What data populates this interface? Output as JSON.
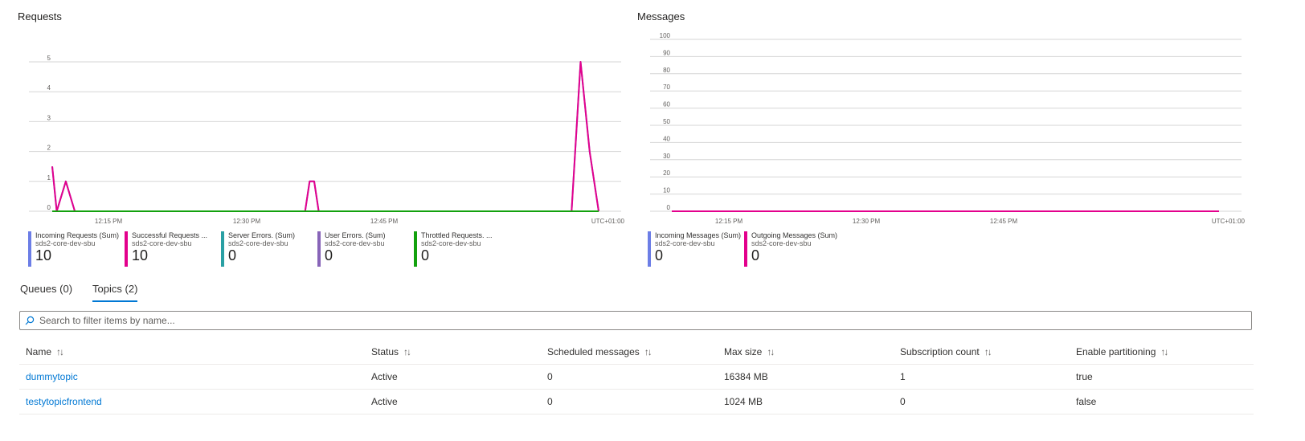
{
  "requests_chart": {
    "title": "Requests",
    "chart_data": {
      "type": "line",
      "y_ticks": [
        "0",
        "1",
        "2",
        "3",
        "4",
        "5"
      ],
      "ylim": [
        0,
        5
      ],
      "x_ticks": [
        "12:15 PM",
        "12:30 PM",
        "12:45 PM"
      ],
      "timezone": "UTC+01:00",
      "series": [
        {
          "name": "Incoming Requests (Sum)",
          "color": "#6c7ee6",
          "points": [
            [
              0,
              1.5
            ],
            [
              1,
              0
            ],
            [
              3,
              1
            ],
            [
              5,
              0
            ],
            [
              56,
              0
            ],
            [
              57,
              1
            ],
            [
              58,
              1
            ],
            [
              59,
              0
            ],
            [
              115,
              0
            ],
            [
              117,
              5
            ],
            [
              119,
              2
            ],
            [
              121,
              0
            ]
          ]
        },
        {
          "name": "Successful Requests ...",
          "color": "#e3008c",
          "points": [
            [
              0,
              1.5
            ],
            [
              1,
              0
            ],
            [
              3,
              1
            ],
            [
              5,
              0
            ],
            [
              56,
              0
            ],
            [
              57,
              1
            ],
            [
              58,
              1
            ],
            [
              59,
              0
            ],
            [
              115,
              0
            ],
            [
              117,
              5
            ],
            [
              119,
              2
            ],
            [
              121,
              0
            ]
          ]
        },
        {
          "name": "Server Errors. (Sum)",
          "color": "#2aa0a4",
          "points": [
            [
              0,
              0
            ],
            [
              121,
              0
            ]
          ]
        },
        {
          "name": "User Errors. (Sum)",
          "color": "#8764b8",
          "points": [
            [
              0,
              0
            ],
            [
              121,
              0
            ]
          ]
        },
        {
          "name": "Throttled Requests. ...",
          "color": "#13a10e",
          "points": [
            [
              0,
              0
            ],
            [
              121,
              0
            ]
          ]
        }
      ]
    },
    "legend": [
      {
        "name": "Incoming Requests (Sum)",
        "resource": "sds2-core-dev-sbu",
        "value": "10",
        "color": "#6c7ee6"
      },
      {
        "name": "Successful Requests ...",
        "resource": "sds2-core-dev-sbu",
        "value": "10",
        "color": "#e3008c"
      },
      {
        "name": "Server Errors. (Sum)",
        "resource": "sds2-core-dev-sbu",
        "value": "0",
        "color": "#2aa0a4"
      },
      {
        "name": "User Errors. (Sum)",
        "resource": "sds2-core-dev-sbu",
        "value": "0",
        "color": "#8764b8"
      },
      {
        "name": "Throttled Requests. ...",
        "resource": "sds2-core-dev-sbu",
        "value": "0",
        "color": "#13a10e"
      }
    ]
  },
  "messages_chart": {
    "title": "Messages",
    "chart_data": {
      "type": "line",
      "y_ticks": [
        "0",
        "10",
        "20",
        "30",
        "40",
        "50",
        "60",
        "70",
        "80",
        "90",
        "100"
      ],
      "ylim": [
        0,
        100
      ],
      "x_ticks": [
        "12:15 PM",
        "12:30 PM",
        "12:45 PM"
      ],
      "timezone": "UTC+01:00",
      "series": [
        {
          "name": "Incoming Messages (Sum)",
          "color": "#6c7ee6",
          "points": [
            [
              0,
              0
            ],
            [
              121,
              0
            ]
          ]
        },
        {
          "name": "Outgoing Messages (Sum)",
          "color": "#e3008c",
          "points": [
            [
              0,
              0
            ],
            [
              121,
              0
            ]
          ]
        }
      ]
    },
    "legend": [
      {
        "name": "Incoming Messages (Sum)",
        "resource": "sds2-core-dev-sbu",
        "value": "0",
        "color": "#6c7ee6"
      },
      {
        "name": "Outgoing Messages (Sum)",
        "resource": "sds2-core-dev-sbu",
        "value": "0",
        "color": "#e3008c"
      }
    ]
  },
  "tabs": [
    {
      "label": "Queues (0)",
      "active": false
    },
    {
      "label": "Topics (2)",
      "active": true
    }
  ],
  "search": {
    "placeholder": "Search to filter items by name..."
  },
  "table": {
    "columns": [
      "Name",
      "Status",
      "Scheduled messages",
      "Max size",
      "Subscription count",
      "Enable partitioning"
    ],
    "rows": [
      [
        "dummytopic",
        "Active",
        "0",
        "16384 MB",
        "1",
        "true"
      ],
      [
        "testytopicfrontend",
        "Active",
        "0",
        "1024 MB",
        "0",
        "false"
      ]
    ]
  },
  "colors": {
    "accent": "#0078d4"
  }
}
